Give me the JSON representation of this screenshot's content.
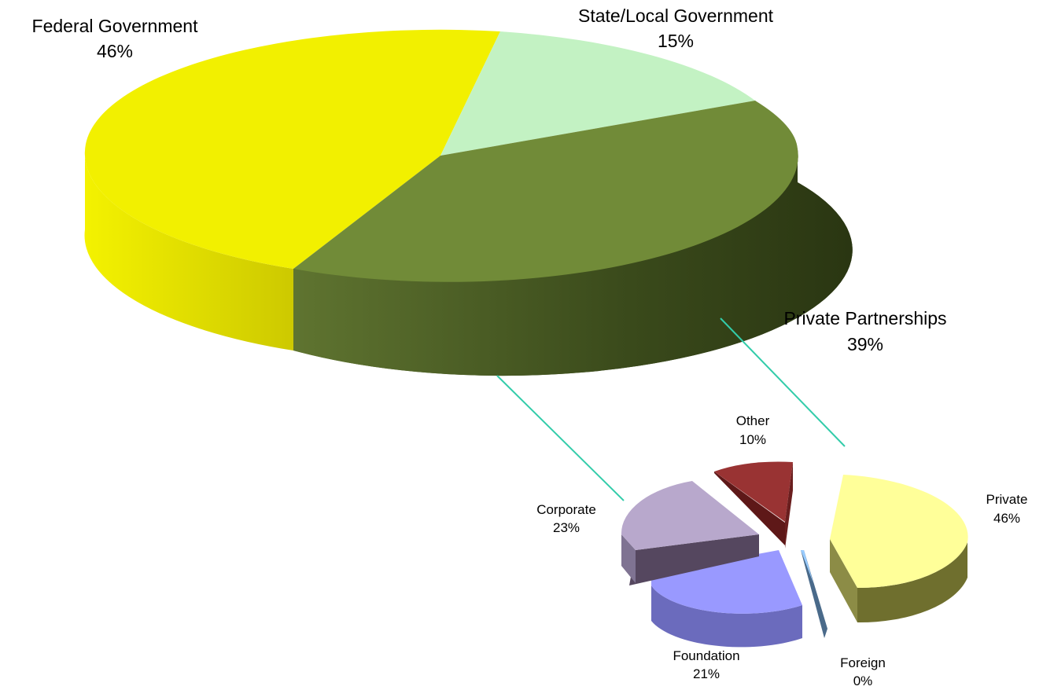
{
  "chart_data": [
    {
      "type": "pie",
      "categories": [
        "Federal Government",
        "State/Local Government",
        "Private Partnerships"
      ],
      "values": [
        46,
        15,
        39
      ],
      "value_labels": [
        "46%",
        "15%",
        "39%"
      ],
      "colors": [
        "#f2f000",
        "#c3f2c3",
        "#718b38"
      ]
    },
    {
      "type": "pie",
      "categories": [
        "Private",
        "Foreign",
        "Foundation",
        "Corporate",
        "Other"
      ],
      "values": [
        46,
        0,
        21,
        23,
        10
      ],
      "value_labels": [
        "46%",
        "0%",
        "21%",
        "23%",
        "10%"
      ],
      "colors": [
        "#ffff99",
        "#99ccff",
        "#9999ff",
        "#b8a8cc",
        "#993333"
      ]
    }
  ],
  "connector_color": "#33ccaa"
}
